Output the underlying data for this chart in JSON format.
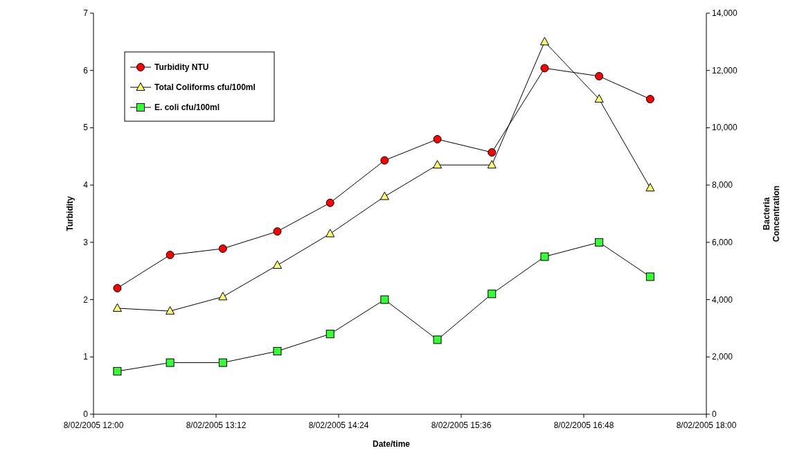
{
  "chart_data": {
    "type": "line",
    "xlabel": "Date/time",
    "ylabel": "Turbidity",
    "y2label": "Bacteria Concentration",
    "x": [
      "2005-02-08T12:14",
      "2005-02-08T12:45",
      "2005-02-08T13:16",
      "2005-02-08T13:48",
      "2005-02-08T14:19",
      "2005-02-08T14:51",
      "2005-02-08T15:22",
      "2005-02-08T15:54",
      "2005-02-08T16:25",
      "2005-02-08T16:57",
      "2005-02-08T17:27"
    ],
    "series": [
      {
        "name": "Turbidity NTU",
        "color": "#ff0000",
        "marker": "circle",
        "values": [
          2.2,
          2.78,
          2.89,
          3.19,
          3.69,
          4.43,
          4.8,
          4.57,
          6.04,
          5.9,
          5.5
        ]
      },
      {
        "name": "Total Coliforms cfu/100ml",
        "color": "#ffff66",
        "marker": "triangle",
        "axis": "y2",
        "values": [
          3700,
          3600,
          4100,
          5200,
          6300,
          7600,
          8700,
          8700,
          13000,
          11000,
          7900
        ]
      },
      {
        "name": "E. coli cfu/100ml",
        "color": "#33ff33",
        "marker": "square",
        "axis": "y2",
        "values": [
          1500,
          1800,
          1800,
          2200,
          2800,
          4000,
          2600,
          4200,
          5500,
          6000,
          4800
        ]
      }
    ],
    "xlim": [
      "2005-02-08T12:00",
      "2005-02-08T18:00"
    ],
    "xticks": [
      {
        "value": "2005-02-08T12:00",
        "label": "8/02/2005 12:00"
      },
      {
        "value": "2005-02-08T13:12",
        "label": "8/02/2005 13:12"
      },
      {
        "value": "2005-02-08T14:24",
        "label": "8/02/2005 14:24"
      },
      {
        "value": "2005-02-08T15:36",
        "label": "8/02/2005 15:36"
      },
      {
        "value": "2005-02-08T16:48",
        "label": "8/02/2005 16:48"
      },
      {
        "value": "2005-02-08T18:00",
        "label": "8/02/2005 18:00"
      }
    ],
    "ylim": [
      0,
      7
    ],
    "yticks": [
      0,
      1,
      2,
      3,
      4,
      5,
      6,
      7
    ],
    "y2lim": [
      0,
      14000
    ],
    "y2ticks": [
      {
        "value": 0,
        "label": "0"
      },
      {
        "value": 2000,
        "label": "2,000"
      },
      {
        "value": 4000,
        "label": "4,000"
      },
      {
        "value": 6000,
        "label": "6,000"
      },
      {
        "value": 8000,
        "label": "8,000"
      },
      {
        "value": 10000,
        "label": "10,000"
      },
      {
        "value": 12000,
        "label": "12,000"
      },
      {
        "value": 14000,
        "label": "14,000"
      }
    ],
    "grid": false,
    "legend": "top left"
  }
}
